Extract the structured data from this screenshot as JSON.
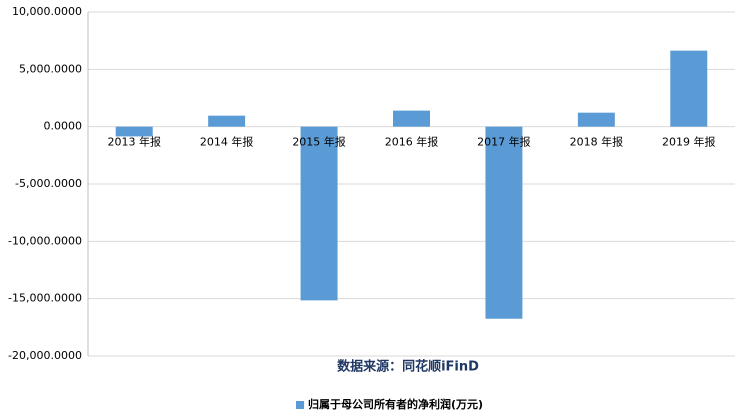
{
  "chart_data": {
    "type": "bar",
    "categories": [
      "2013 年报",
      "2014 年报",
      "2015 年报",
      "2016 年报",
      "2017 年报",
      "2018 年报",
      "2019 年报"
    ],
    "series": [
      {
        "name": "归属于母公司所有者的净利润(万元)",
        "color": "#5b9bd5",
        "values": [
          -850,
          960,
          -15150,
          1400,
          -16750,
          1220,
          6630
        ]
      }
    ],
    "ylim": [
      -20000,
      10000
    ],
    "yticks": [
      {
        "value": -20000,
        "label": "-20,000.0000"
      },
      {
        "value": -15000,
        "label": "-15,000.0000"
      },
      {
        "value": -10000,
        "label": "-10,000.0000"
      },
      {
        "value": -5000,
        "label": "-5,000.0000"
      },
      {
        "value": 0,
        "label": "0.0000"
      },
      {
        "value": 5000,
        "label": "5,000.0000"
      },
      {
        "value": 10000,
        "label": "10,000.0000"
      }
    ],
    "grid": true,
    "annotation": "数据来源：同花顺iFinD",
    "legend": "bottom"
  }
}
